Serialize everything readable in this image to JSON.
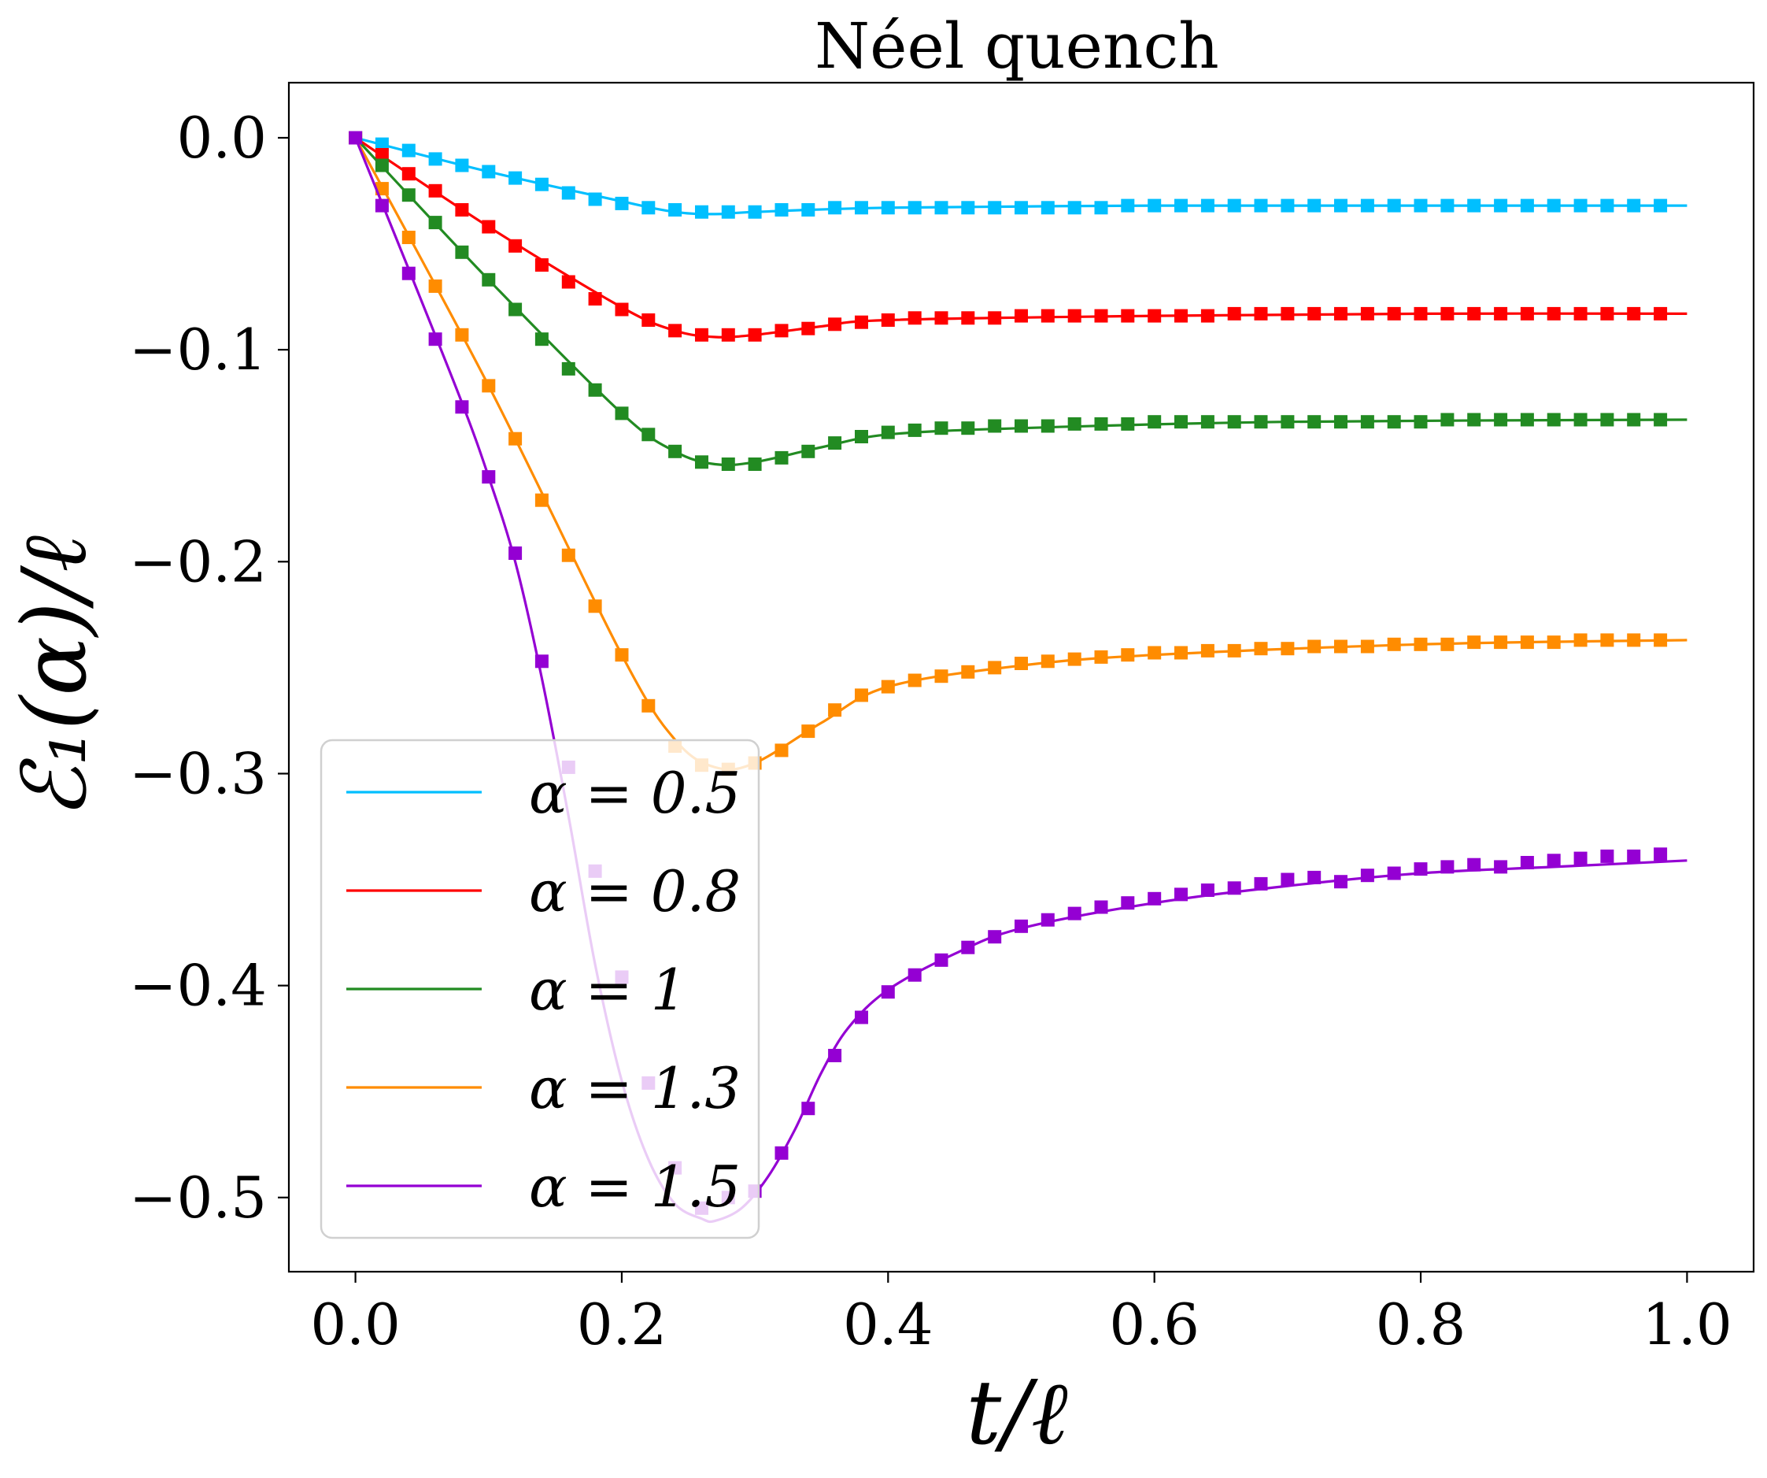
{
  "chart_data": {
    "type": "line",
    "title": "Néel quench",
    "xlabel": "t/ℓ",
    "ylabel": "ℰ₁(α)/ℓ",
    "xlim": [
      -0.05,
      1.05
    ],
    "ylim": [
      -0.535,
      0.026
    ],
    "xticks": [
      {
        "value": 0.0,
        "label": "0.0"
      },
      {
        "value": 0.2,
        "label": "0.2"
      },
      {
        "value": 0.4,
        "label": "0.4"
      },
      {
        "value": 0.6,
        "label": "0.6"
      },
      {
        "value": 0.8,
        "label": "0.8"
      },
      {
        "value": 1.0,
        "label": "1.0"
      }
    ],
    "yticks": [
      {
        "value": 0.0,
        "label": "0.0"
      },
      {
        "value": -0.1,
        "label": "−0.1"
      },
      {
        "value": -0.2,
        "label": "−0.2"
      },
      {
        "value": -0.3,
        "label": "−0.3"
      },
      {
        "value": -0.4,
        "label": "−0.4"
      },
      {
        "value": -0.5,
        "label": "−0.5"
      }
    ],
    "grid": false,
    "legend_position": "bottom-left",
    "x_points": [
      0.0,
      0.02,
      0.04,
      0.06,
      0.08,
      0.1,
      0.12,
      0.14,
      0.16,
      0.18,
      0.2,
      0.22,
      0.24,
      0.26,
      0.28,
      0.3,
      0.32,
      0.34,
      0.36,
      0.38,
      0.4,
      0.42,
      0.44,
      0.46,
      0.48,
      0.5,
      0.52,
      0.54,
      0.56,
      0.58,
      0.6,
      0.62,
      0.64,
      0.66,
      0.68,
      0.7,
      0.72,
      0.74,
      0.76,
      0.78,
      0.8,
      0.82,
      0.84,
      0.86,
      0.88,
      0.9,
      0.92,
      0.94,
      0.96,
      0.98
    ],
    "series": [
      {
        "name": "α = 0.5",
        "legend_label": "α = 0.5",
        "color": "#00bfff",
        "curve": [
          [
            0.0,
            0.0
          ],
          [
            0.1,
            -0.016
          ],
          [
            0.2,
            -0.03
          ],
          [
            0.24,
            -0.035
          ],
          [
            0.27,
            -0.036
          ],
          [
            0.3,
            -0.035
          ],
          [
            0.4,
            -0.033
          ],
          [
            0.6,
            -0.032
          ],
          [
            0.8,
            -0.032
          ],
          [
            1.0,
            -0.032
          ]
        ],
        "markers": [
          0.0,
          -0.003,
          -0.006,
          -0.01,
          -0.013,
          -0.016,
          -0.019,
          -0.022,
          -0.026,
          -0.029,
          -0.031,
          -0.033,
          -0.034,
          -0.035,
          -0.035,
          -0.035,
          -0.034,
          -0.034,
          -0.033,
          -0.033,
          -0.033,
          -0.033,
          -0.033,
          -0.033,
          -0.033,
          -0.033,
          -0.033,
          -0.033,
          -0.033,
          -0.032,
          -0.032,
          -0.032,
          -0.032,
          -0.032,
          -0.032,
          -0.032,
          -0.032,
          -0.032,
          -0.032,
          -0.032,
          -0.032,
          -0.032,
          -0.032,
          -0.032,
          -0.032,
          -0.032,
          -0.032,
          -0.032,
          -0.032,
          -0.032
        ]
      },
      {
        "name": "α = 0.8",
        "legend_label": "α = 0.8",
        "color": "#ff0000",
        "curve": [
          [
            0.0,
            0.0
          ],
          [
            0.1,
            -0.042
          ],
          [
            0.2,
            -0.08
          ],
          [
            0.24,
            -0.091
          ],
          [
            0.27,
            -0.094
          ],
          [
            0.3,
            -0.093
          ],
          [
            0.35,
            -0.089
          ],
          [
            0.4,
            -0.086
          ],
          [
            0.6,
            -0.084
          ],
          [
            0.8,
            -0.083
          ],
          [
            1.0,
            -0.083
          ]
        ],
        "markers": [
          0.0,
          -0.008,
          -0.017,
          -0.025,
          -0.034,
          -0.042,
          -0.051,
          -0.06,
          -0.068,
          -0.076,
          -0.081,
          -0.086,
          -0.091,
          -0.093,
          -0.093,
          -0.093,
          -0.091,
          -0.09,
          -0.088,
          -0.087,
          -0.086,
          -0.085,
          -0.085,
          -0.085,
          -0.085,
          -0.084,
          -0.084,
          -0.084,
          -0.084,
          -0.084,
          -0.084,
          -0.084,
          -0.084,
          -0.083,
          -0.083,
          -0.083,
          -0.083,
          -0.083,
          -0.083,
          -0.083,
          -0.083,
          -0.083,
          -0.083,
          -0.083,
          -0.083,
          -0.083,
          -0.083,
          -0.083,
          -0.083,
          -0.083
        ]
      },
      {
        "name": "α = 1",
        "legend_label": "α = 1",
        "color": "#228b22",
        "curve": [
          [
            0.0,
            0.0
          ],
          [
            0.1,
            -0.067
          ],
          [
            0.2,
            -0.13
          ],
          [
            0.24,
            -0.148
          ],
          [
            0.27,
            -0.154
          ],
          [
            0.3,
            -0.153
          ],
          [
            0.35,
            -0.146
          ],
          [
            0.4,
            -0.14
          ],
          [
            0.5,
            -0.137
          ],
          [
            0.7,
            -0.134
          ],
          [
            1.0,
            -0.133
          ]
        ],
        "markers": [
          0.0,
          -0.013,
          -0.027,
          -0.04,
          -0.054,
          -0.067,
          -0.081,
          -0.095,
          -0.109,
          -0.119,
          -0.13,
          -0.14,
          -0.148,
          -0.153,
          -0.154,
          -0.154,
          -0.151,
          -0.148,
          -0.144,
          -0.141,
          -0.139,
          -0.138,
          -0.137,
          -0.137,
          -0.136,
          -0.136,
          -0.136,
          -0.135,
          -0.135,
          -0.135,
          -0.134,
          -0.134,
          -0.134,
          -0.134,
          -0.134,
          -0.134,
          -0.134,
          -0.134,
          -0.134,
          -0.134,
          -0.134,
          -0.133,
          -0.133,
          -0.133,
          -0.133,
          -0.133,
          -0.133,
          -0.133,
          -0.133,
          -0.133
        ]
      },
      {
        "name": "α = 1.3",
        "legend_label": "α = 1.3",
        "color": "#ff8c00",
        "curve": [
          [
            0.0,
            0.0
          ],
          [
            0.1,
            -0.117
          ],
          [
            0.2,
            -0.244
          ],
          [
            0.24,
            -0.284
          ],
          [
            0.27,
            -0.297
          ],
          [
            0.3,
            -0.295
          ],
          [
            0.35,
            -0.276
          ],
          [
            0.4,
            -0.259
          ],
          [
            0.5,
            -0.249
          ],
          [
            0.6,
            -0.244
          ],
          [
            0.8,
            -0.239
          ],
          [
            1.0,
            -0.237
          ]
        ],
        "markers": [
          0.0,
          -0.024,
          -0.047,
          -0.07,
          -0.093,
          -0.117,
          -0.142,
          -0.171,
          -0.197,
          -0.221,
          -0.244,
          -0.268,
          -0.287,
          -0.296,
          -0.298,
          -0.295,
          -0.289,
          -0.28,
          -0.27,
          -0.263,
          -0.259,
          -0.256,
          -0.254,
          -0.252,
          -0.25,
          -0.248,
          -0.247,
          -0.246,
          -0.245,
          -0.244,
          -0.243,
          -0.243,
          -0.242,
          -0.242,
          -0.241,
          -0.241,
          -0.24,
          -0.24,
          -0.24,
          -0.239,
          -0.239,
          -0.239,
          -0.238,
          -0.238,
          -0.238,
          -0.238,
          -0.237,
          -0.237,
          -0.237,
          -0.237
        ]
      },
      {
        "name": "α = 1.5",
        "legend_label": "α = 1.5",
        "color": "#9400d3",
        "curve": [
          [
            0.0,
            0.0
          ],
          [
            0.04,
            -0.062
          ],
          [
            0.08,
            -0.125
          ],
          [
            0.1,
            -0.16
          ],
          [
            0.12,
            -0.2
          ],
          [
            0.14,
            -0.255
          ],
          [
            0.16,
            -0.32
          ],
          [
            0.18,
            -0.39
          ],
          [
            0.2,
            -0.445
          ],
          [
            0.22,
            -0.482
          ],
          [
            0.24,
            -0.503
          ],
          [
            0.26,
            -0.51
          ],
          [
            0.27,
            -0.511
          ],
          [
            0.29,
            -0.505
          ],
          [
            0.31,
            -0.49
          ],
          [
            0.33,
            -0.468
          ],
          [
            0.35,
            -0.441
          ],
          [
            0.37,
            -0.42
          ],
          [
            0.4,
            -0.402
          ],
          [
            0.45,
            -0.385
          ],
          [
            0.5,
            -0.373
          ],
          [
            0.6,
            -0.361
          ],
          [
            0.7,
            -0.353
          ],
          [
            0.8,
            -0.347
          ],
          [
            0.9,
            -0.344
          ],
          [
            1.0,
            -0.341
          ]
        ],
        "markers": [
          0.0,
          -0.032,
          -0.064,
          -0.095,
          -0.127,
          -0.16,
          -0.196,
          -0.247,
          -0.297,
          -0.346,
          -0.396,
          -0.446,
          -0.486,
          -0.505,
          -0.5,
          -0.497,
          -0.479,
          -0.458,
          -0.433,
          -0.415,
          -0.403,
          -0.395,
          -0.388,
          -0.382,
          -0.377,
          -0.372,
          -0.369,
          -0.366,
          -0.363,
          -0.361,
          -0.359,
          -0.357,
          -0.355,
          -0.354,
          -0.352,
          -0.35,
          -0.349,
          -0.351,
          -0.348,
          -0.347,
          -0.345,
          -0.344,
          -0.343,
          -0.344,
          -0.342,
          -0.341,
          -0.34,
          -0.339,
          -0.339,
          -0.338
        ]
      }
    ]
  }
}
